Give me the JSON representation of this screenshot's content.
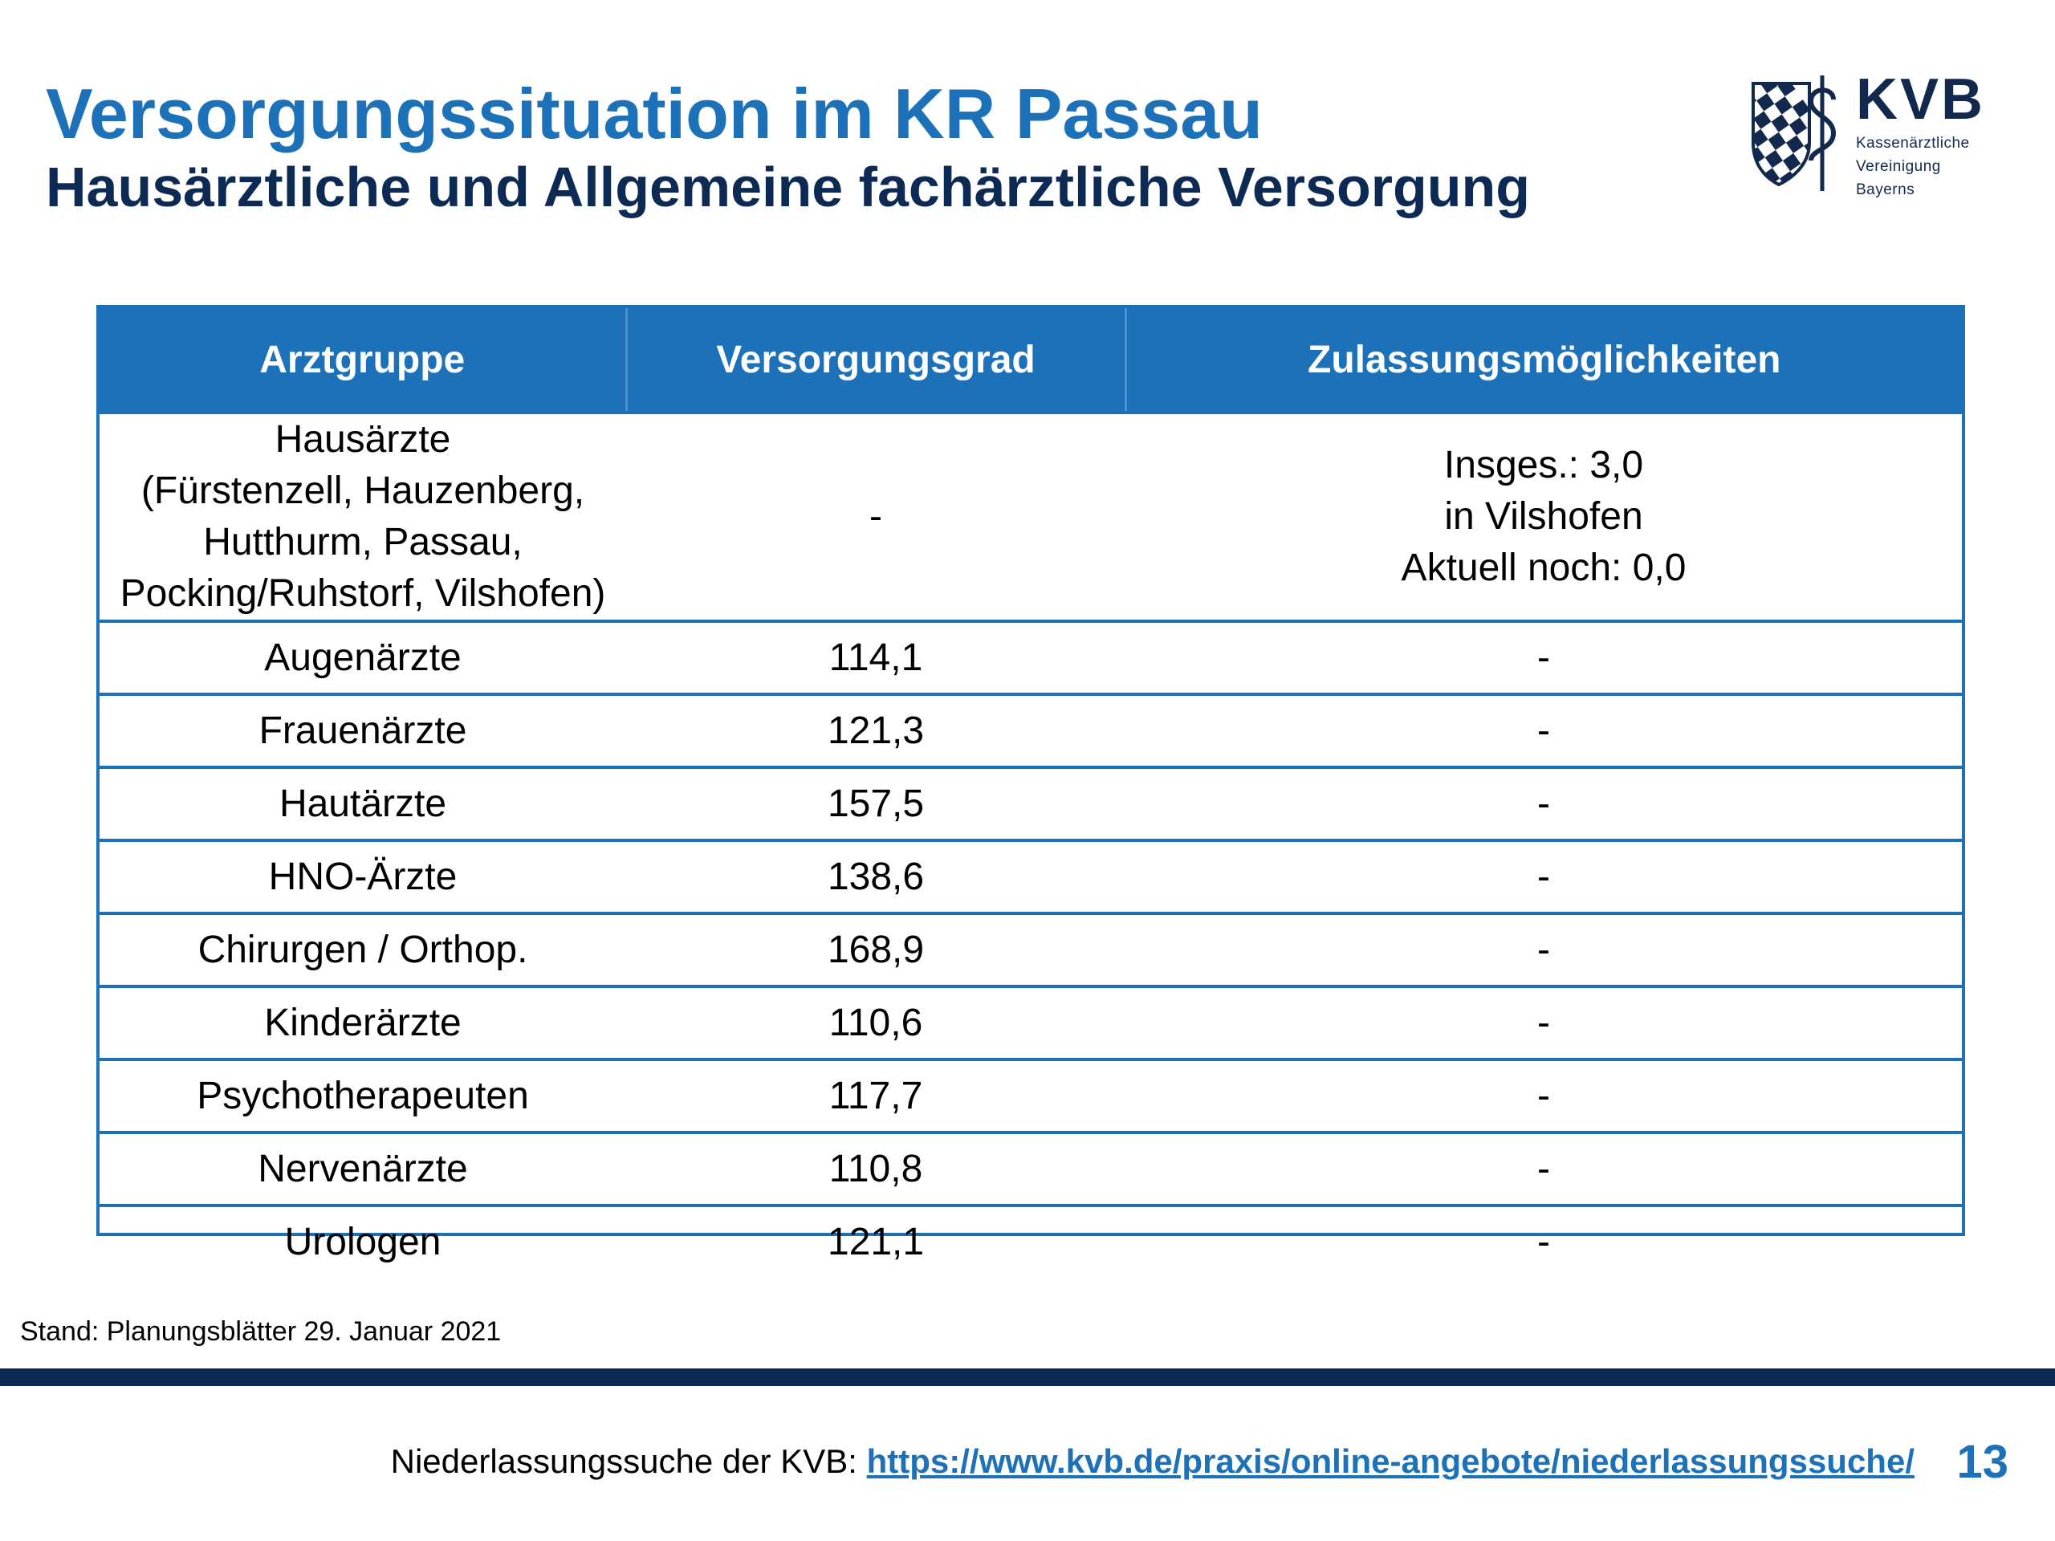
{
  "header": {
    "title": "Versorgungssituation im KR Passau",
    "subtitle": "Hausärztliche und Allgemeine fachärztliche Versorgung"
  },
  "logo": {
    "name": "KVB",
    "line1": "Kassenärztliche",
    "line2": "Vereinigung",
    "line3": "Bayerns",
    "icon": "kvb-crest-icon"
  },
  "table": {
    "headers": [
      "Arztgruppe",
      "Versorgungsgrad",
      "Zulassungsmöglichkeiten"
    ],
    "rows": [
      [
        "Hausärzte\n(Fürstenzell, Hauzenberg,\nHutthurm, Passau,\nPocking/Ruhstorf, Vilshofen)",
        "-",
        "Insges.: 3,0\nin Vilshofen\nAktuell noch: 0,0"
      ],
      [
        "Augenärzte",
        "114,1",
        "-"
      ],
      [
        "Frauenärzte",
        "121,3",
        "-"
      ],
      [
        "Hautärzte",
        "157,5",
        "-"
      ],
      [
        "HNO-Ärzte",
        "138,6",
        "-"
      ],
      [
        "Chirurgen / Orthop.",
        "168,9",
        "-"
      ],
      [
        "Kinderärzte",
        "110,6",
        "-"
      ],
      [
        "Psychotherapeuten",
        "117,7",
        "-"
      ],
      [
        "Nervenärzte",
        "110,8",
        "-"
      ],
      [
        "Urologen",
        "121,1",
        "-"
      ]
    ]
  },
  "footnote": "Stand: Planungsblätter 29. Januar 2021",
  "footer": {
    "label": "Niederlassungssuche der KVB:",
    "link": "https://www.kvb.de/praxis/online-angebote/niederlassungssuche/",
    "page_number": "13"
  },
  "colors": {
    "accent": "#1d71b8",
    "dark": "#0d2a54"
  }
}
